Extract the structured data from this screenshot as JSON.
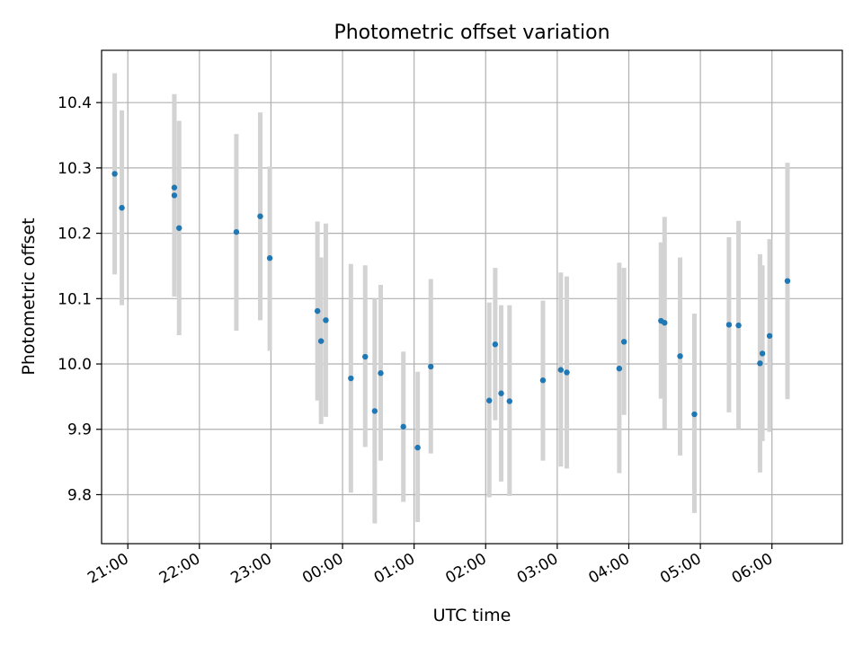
{
  "chart_data": {
    "type": "scatter",
    "title": "Photometric offset variation",
    "xlabel": "UTC time",
    "ylabel": "Photometric offset",
    "grid": true,
    "x_axis_kind": "time",
    "xlim": [
      "20:38",
      "06:59"
    ],
    "ylim": [
      9.725,
      10.48
    ],
    "x_ticks": [
      "21:00",
      "22:00",
      "23:00",
      "00:00",
      "01:00",
      "02:00",
      "03:00",
      "04:00",
      "05:00",
      "06:00"
    ],
    "y_ticks": [
      "9.8",
      "9.9",
      "10.0",
      "10.1",
      "10.2",
      "10.3",
      "10.4"
    ],
    "series": [
      {
        "color": "#1f77b4",
        "errorbar_color": "#d3d3d3",
        "points": [
          {
            "x": "20:49",
            "y": 10.291,
            "lo": 10.137,
            "hi": 10.445
          },
          {
            "x": "20:55",
            "y": 10.239,
            "lo": 10.09,
            "hi": 10.388
          },
          {
            "x": "21:39",
            "y": 10.27,
            "lo": 10.127,
            "hi": 10.413
          },
          {
            "x": "21:39",
            "y": 10.258,
            "lo": 10.103,
            "hi": 10.412
          },
          {
            "x": "21:43",
            "y": 10.208,
            "lo": 10.044,
            "hi": 10.372
          },
          {
            "x": "22:31",
            "y": 10.202,
            "lo": 10.051,
            "hi": 10.352
          },
          {
            "x": "22:51",
            "y": 10.226,
            "lo": 10.067,
            "hi": 10.385
          },
          {
            "x": "22:59",
            "y": 10.162,
            "lo": 10.02,
            "hi": 10.302
          },
          {
            "x": "23:39",
            "y": 10.081,
            "lo": 9.944,
            "hi": 10.218
          },
          {
            "x": "23:42",
            "y": 10.035,
            "lo": 9.908,
            "hi": 10.163
          },
          {
            "x": "23:46",
            "y": 10.067,
            "lo": 9.919,
            "hi": 10.215
          },
          {
            "x": "00:07",
            "y": 9.978,
            "lo": 9.803,
            "hi": 10.153
          },
          {
            "x": "00:19",
            "y": 10.011,
            "lo": 9.873,
            "hi": 10.151
          },
          {
            "x": "00:27",
            "y": 9.928,
            "lo": 9.756,
            "hi": 10.1
          },
          {
            "x": "00:32",
            "y": 9.986,
            "lo": 9.852,
            "hi": 10.121
          },
          {
            "x": "00:51",
            "y": 9.904,
            "lo": 9.789,
            "hi": 10.019
          },
          {
            "x": "01:03",
            "y": 9.872,
            "lo": 9.758,
            "hi": 9.988
          },
          {
            "x": "01:14",
            "y": 9.996,
            "lo": 9.863,
            "hi": 10.13
          },
          {
            "x": "02:03",
            "y": 9.944,
            "lo": 9.796,
            "hi": 10.094
          },
          {
            "x": "02:08",
            "y": 10.03,
            "lo": 9.914,
            "hi": 10.147
          },
          {
            "x": "02:13",
            "y": 9.955,
            "lo": 9.82,
            "hi": 10.09
          },
          {
            "x": "02:20",
            "y": 9.943,
            "lo": 9.798,
            "hi": 10.09
          },
          {
            "x": "02:48",
            "y": 9.975,
            "lo": 9.852,
            "hi": 10.097
          },
          {
            "x": "03:03",
            "y": 9.991,
            "lo": 9.843,
            "hi": 10.14
          },
          {
            "x": "03:08",
            "y": 9.987,
            "lo": 9.84,
            "hi": 10.134
          },
          {
            "x": "03:52",
            "y": 9.993,
            "lo": 9.833,
            "hi": 10.155
          },
          {
            "x": "03:56",
            "y": 10.034,
            "lo": 9.922,
            "hi": 10.147
          },
          {
            "x": "04:27",
            "y": 10.066,
            "lo": 9.947,
            "hi": 10.186
          },
          {
            "x": "04:30",
            "y": 10.063,
            "lo": 9.901,
            "hi": 10.225
          },
          {
            "x": "04:43",
            "y": 10.012,
            "lo": 9.86,
            "hi": 10.163
          },
          {
            "x": "04:55",
            "y": 9.923,
            "lo": 9.772,
            "hi": 10.077
          },
          {
            "x": "05:24",
            "y": 10.06,
            "lo": 9.926,
            "hi": 10.194
          },
          {
            "x": "05:32",
            "y": 10.059,
            "lo": 9.9,
            "hi": 10.219
          },
          {
            "x": "05:50",
            "y": 10.001,
            "lo": 9.834,
            "hi": 10.168
          },
          {
            "x": "05:52",
            "y": 10.016,
            "lo": 9.882,
            "hi": 10.151
          },
          {
            "x": "05:58",
            "y": 10.043,
            "lo": 9.896,
            "hi": 10.191
          },
          {
            "x": "06:13",
            "y": 10.127,
            "lo": 9.946,
            "hi": 10.308
          }
        ]
      }
    ]
  }
}
